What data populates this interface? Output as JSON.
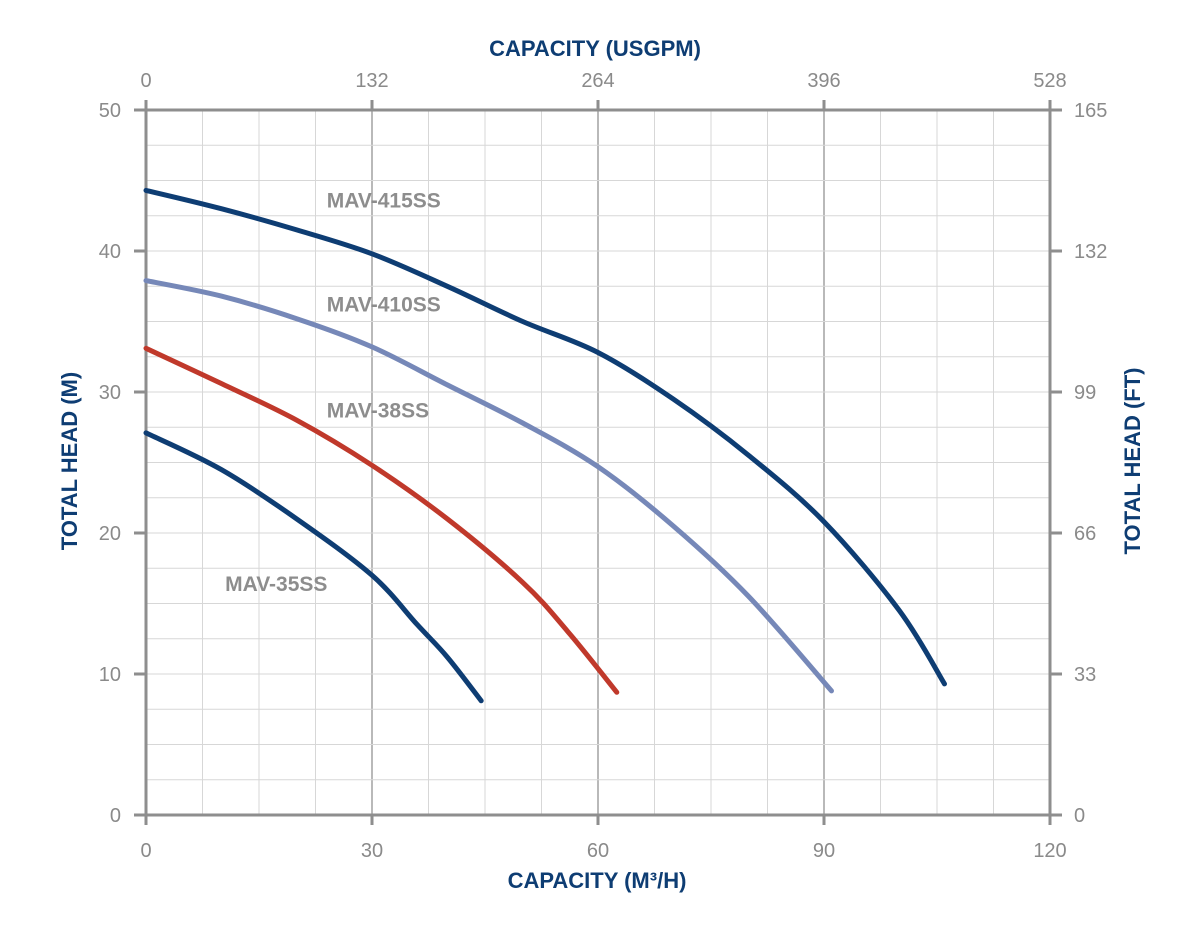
{
  "chart_data": {
    "type": "line",
    "title": "",
    "xlabel": "CAPACITY (M³/H)",
    "x2label": "CAPACITY (USGPM)",
    "ylabel": "TOTAL HEAD (M)",
    "y2label": "TOTAL HEAD (FT)",
    "xlim": [
      0,
      120
    ],
    "ylim": [
      0,
      50
    ],
    "x2lim": [
      0,
      528
    ],
    "y2lim": [
      0,
      165
    ],
    "x_ticks": [
      "0",
      "30",
      "60",
      "90",
      "120"
    ],
    "y_ticks": [
      "0",
      "10",
      "20",
      "30",
      "40",
      "50"
    ],
    "x2_ticks": [
      "0",
      "132",
      "264",
      "396",
      "528"
    ],
    "y2_ticks": [
      "0",
      "33",
      "66",
      "99",
      "132",
      "165"
    ],
    "grid": true,
    "legend": "none",
    "series": [
      {
        "name": "MAV-415SS",
        "color": "#0e3d73",
        "x": [
          0,
          10,
          20,
          30,
          40,
          50,
          60,
          70,
          80,
          90,
          100,
          106
        ],
        "y": [
          44.3,
          43.0,
          41.5,
          39.8,
          37.5,
          35.0,
          32.8,
          29.5,
          25.5,
          20.8,
          14.5,
          9.3
        ],
        "label_at": [
          24,
          43.1
        ]
      },
      {
        "name": "MAV-410SS",
        "color": "#7688b8",
        "x": [
          0,
          10,
          20,
          30,
          40,
          50,
          60,
          70,
          80,
          91
        ],
        "y": [
          37.9,
          36.8,
          35.2,
          33.2,
          30.5,
          27.8,
          24.7,
          20.5,
          15.5,
          8.8
        ],
        "label_at": [
          24,
          35.7
        ]
      },
      {
        "name": "MAV-38SS",
        "color": "#c0392b",
        "x": [
          0,
          10,
          20,
          30,
          40,
          50,
          56,
          62.5
        ],
        "y": [
          33.1,
          30.6,
          28.0,
          24.8,
          21.0,
          16.5,
          13.0,
          8.7
        ],
        "label_at": [
          24,
          28.2
        ]
      },
      {
        "name": "MAV-35SS",
        "color": "#0e3d73",
        "x": [
          0,
          10,
          20,
          30,
          36,
          40,
          44.5
        ],
        "y": [
          27.1,
          24.5,
          21.0,
          17.0,
          13.5,
          11.2,
          8.1
        ],
        "label_at": [
          10.5,
          15.9
        ]
      }
    ]
  }
}
